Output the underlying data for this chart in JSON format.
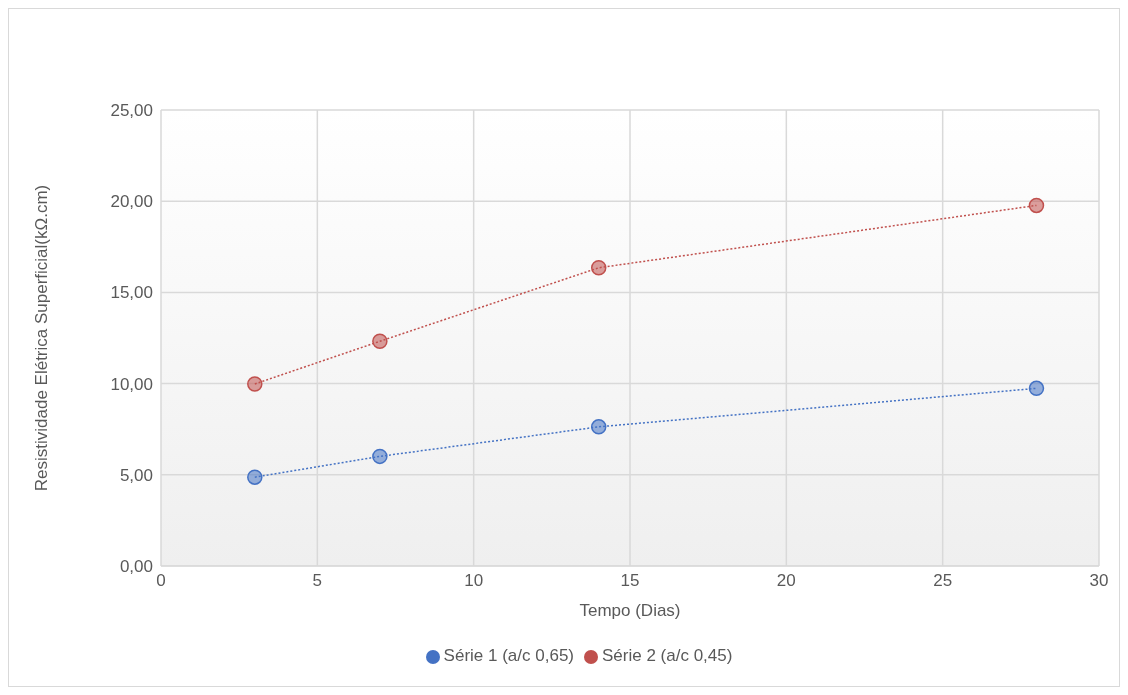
{
  "chart_data": {
    "type": "line",
    "xlabel": "Tempo (Dias)",
    "ylabel": "Resistividade Elétrica Superficial(kΩ.cm)",
    "x": [
      3,
      7,
      14,
      28
    ],
    "series": [
      {
        "name": "Série 1 (a/c 0,65)",
        "color": "#4472c4",
        "values": [
          4.87,
          6.01,
          7.63,
          9.74
        ]
      },
      {
        "name": "Série 2 (a/c 0,45)",
        "color": "#c0504d",
        "values": [
          9.98,
          12.32,
          16.35,
          19.77
        ]
      }
    ],
    "xlim": [
      0,
      30
    ],
    "xticks": [
      0,
      5,
      10,
      15,
      20,
      25,
      30
    ],
    "ylim": [
      0,
      25
    ],
    "yticks": [
      {
        "value": 0,
        "label": "0,00"
      },
      {
        "value": 5,
        "label": "5,00"
      },
      {
        "value": 10,
        "label": "10,00"
      },
      {
        "value": 15,
        "label": "15,00"
      },
      {
        "value": 20,
        "label": "20,00"
      },
      {
        "value": 25,
        "label": "25,00"
      }
    ],
    "grid": true,
    "legend": "bottom",
    "marker": "circle",
    "line_style": "dotted"
  }
}
